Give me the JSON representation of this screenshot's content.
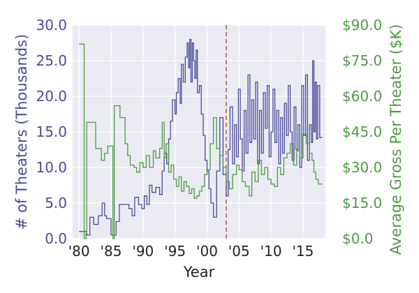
{
  "chart_data": {
    "type": "line",
    "title": "",
    "xlabel": "Year",
    "ylabel_left": "# of Theaters (Thousands)",
    "ylabel_right": "Average Gross Per Theater ($K)",
    "xlim": [
      1979,
      2018.5
    ],
    "ylim_left": [
      0,
      30
    ],
    "ylim_right": [
      0,
      90
    ],
    "x_ticks": [
      {
        "value": 1980,
        "label": "'80"
      },
      {
        "value": 1985,
        "label": "'85"
      },
      {
        "value": 1990,
        "label": "'90"
      },
      {
        "value": 1995,
        "label": "'95"
      },
      {
        "value": 2000,
        "label": "'00"
      },
      {
        "value": 2005,
        "label": "'05"
      },
      {
        "value": 2010,
        "label": "'10"
      },
      {
        "value": 2015,
        "label": "'15"
      }
    ],
    "y_ticks_left": [
      "0.0",
      "5.0",
      "10.0",
      "15.0",
      "20.0",
      "25.0",
      "30.0"
    ],
    "y_ticks_right": [
      "$0.0",
      "$15.0",
      "$30.0",
      "$45.0",
      "$60.0",
      "$75.0",
      "$90.0"
    ],
    "vline": {
      "x": 2003,
      "color": "#b05050",
      "style": "dashed"
    },
    "colors": {
      "left_axis": "#4a4a9c",
      "right_axis": "#4e9a45",
      "background": "#eaeaf2",
      "grid": "#ffffff"
    },
    "series": [
      {
        "name": "# of Theaters (Thousands)",
        "axis": "left",
        "step": true,
        "color": "#4a4a9c",
        "x": [
          1980,
          1981.2,
          1981.7,
          1982.3,
          1983,
          1983.6,
          1984,
          1984.3,
          1985,
          1985.8,
          1986.3,
          1987,
          1987.8,
          1988.3,
          1988.7,
          1989.3,
          1989.8,
          1990.2,
          1990.6,
          1991,
          1991.4,
          1992,
          1992.6,
          1993,
          1993.3,
          1993.7,
          1994,
          1994.3,
          1994.6,
          1995,
          1995.2,
          1995.5,
          1995.8,
          1996,
          1996.3,
          1996.6,
          1996.9,
          1997.1,
          1997.3,
          1997.5,
          1997.7,
          1997.9,
          1998.1,
          1998.3,
          1998.5,
          1998.8,
          1999.1,
          1999.4,
          1999.7,
          2000,
          2000.3,
          2000.6,
          2001,
          2001.5,
          2002,
          2002.5,
          2003,
          2003.3,
          2003.6,
          2004,
          2004.3,
          2004.6,
          2004.9,
          2005.2,
          2005.5,
          2005.8,
          2006.1,
          2006.4,
          2006.7,
          2007,
          2007.3,
          2007.6,
          2007.9,
          2008.2,
          2008.5,
          2008.8,
          2009.1,
          2009.4,
          2009.7,
          2010,
          2010.3,
          2010.6,
          2010.9,
          2011.2,
          2011.5,
          2011.8,
          2012.1,
          2012.4,
          2012.7,
          2013,
          2013.3,
          2013.6,
          2013.9,
          2014.2,
          2014.5,
          2014.8,
          2015.1,
          2015.4,
          2015.7,
          2016,
          2016.3,
          2016.5,
          2016.7,
          2016.9,
          2017.1,
          2017.3,
          2017.6,
          2018
        ],
        "y": [
          1.0,
          0.5,
          3.0,
          2.0,
          3.2,
          5.0,
          3.2,
          2.8,
          0.5,
          2.4,
          4.8,
          4.8,
          4.2,
          3.2,
          5.8,
          4.8,
          4.2,
          6.0,
          4.8,
          7.5,
          6.5,
          7.2,
          6.2,
          9.5,
          12.0,
          10.5,
          14.0,
          16.5,
          19.5,
          17.5,
          20.5,
          22.5,
          19.0,
          24.5,
          22.0,
          25.5,
          27.5,
          24.0,
          28.0,
          22.0,
          27.5,
          25.0,
          22.5,
          26.5,
          20.5,
          21.5,
          17.5,
          14.5,
          11.0,
          9.5,
          7.0,
          5.0,
          3.0,
          9.5,
          17.0,
          9.0,
          6.0,
          12.5,
          18.5,
          10.5,
          16.0,
          11.5,
          21.0,
          14.0,
          9.5,
          18.0,
          12.0,
          23.0,
          13.5,
          19.5,
          14.0,
          22.0,
          10.5,
          18.0,
          12.0,
          20.5,
          15.5,
          21.5,
          11.5,
          15.0,
          21.0,
          13.5,
          18.0,
          10.5,
          17.0,
          12.0,
          19.0,
          14.5,
          21.5,
          15.0,
          11.0,
          18.5,
          12.5,
          16.0,
          10.0,
          21.5,
          14.5,
          23.0,
          11.0,
          16.0,
          13.5,
          25.0,
          15.0,
          22.0,
          14.0,
          21.5,
          14.2,
          14.2
        ]
      },
      {
        "name": "Average Gross Per Theater ($K)",
        "axis": "right",
        "step": true,
        "color": "#4e9a45",
        "x": [
          1980,
          1980.8,
          1981.1,
          1981.2,
          1982.6,
          1983,
          1983.5,
          1984,
          1984.5,
          1985.3,
          1985.5,
          1986.4,
          1987.2,
          1987.6,
          1988,
          1988.6,
          1989,
          1989.5,
          1990,
          1990.5,
          1991,
          1991.6,
          1992,
          1992.6,
          1993,
          1993.3,
          1993.6,
          1994,
          1994.4,
          1994.8,
          1995.2,
          1995.6,
          1996,
          1996.4,
          1996.8,
          1997.2,
          1997.6,
          1998,
          1998.4,
          1998.8,
          1999.2,
          1999.6,
          2000,
          2000.5,
          2001,
          2001.5,
          2002,
          2002.5,
          2003,
          2003.5,
          2004,
          2004.6,
          2005,
          2005.5,
          2006,
          2006.6,
          2007,
          2007.5,
          2008,
          2008.5,
          2009,
          2009.5,
          2010,
          2010.5,
          2011,
          2011.5,
          2012,
          2012.5,
          2013,
          2013.5,
          2014,
          2014.5,
          2015,
          2015.5,
          2016,
          2016.4,
          2016.7,
          2017,
          2017.4,
          2018
        ],
        "y": [
          82,
          0,
          2,
          49,
          38,
          38,
          33,
          36,
          39,
          0,
          56,
          51,
          40,
          35,
          31,
          30,
          28,
          32,
          30,
          35,
          30,
          37,
          34,
          38,
          49,
          34,
          40,
          28,
          31,
          25,
          22,
          26,
          20,
          24,
          22,
          19,
          21,
          17,
          18,
          20,
          22,
          27,
          29,
          40,
          51,
          38,
          35,
          30,
          24,
          21,
          27,
          31,
          29,
          24,
          22,
          18,
          28,
          24,
          33,
          27,
          30,
          25,
          23,
          22,
          30,
          27,
          34,
          36,
          40,
          31,
          37,
          34,
          44,
          40,
          36,
          33,
          28,
          25,
          23,
          23
        ]
      }
    ]
  }
}
